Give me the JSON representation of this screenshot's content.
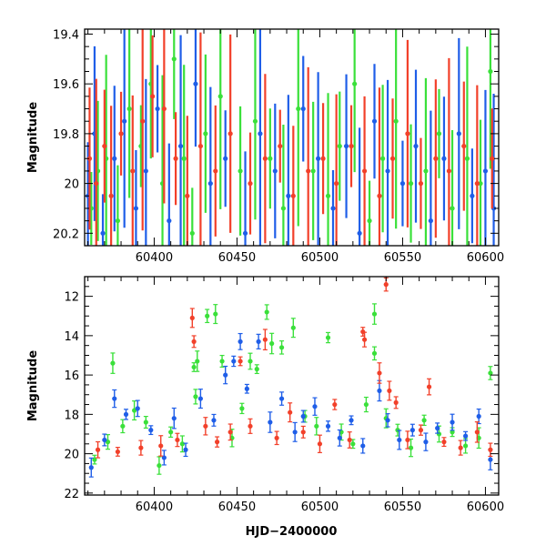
{
  "chart_data": [
    {
      "type": "scatter",
      "panel": "top",
      "xlabel": "",
      "ylabel": "Magnitude",
      "xlim": [
        60358,
        60608
      ],
      "ylim": [
        20.25,
        19.38
      ],
      "y_inverted": true,
      "x_ticks": [
        60400,
        60450,
        60500,
        60550,
        60600
      ],
      "x_tick_labels": [
        "60400",
        "60450",
        "60500",
        "60550",
        "60600"
      ],
      "y_ticks": [
        19.4,
        19.6,
        19.8,
        20,
        20.2
      ],
      "y_tick_labels": [
        "19.4",
        "19.6",
        "19.8",
        "20",
        "20.2"
      ],
      "grid": false,
      "legend": "none",
      "series": [
        {
          "color": "#3ae03a",
          "points": [
            [
              60362,
              20.1
            ],
            [
              60366,
              19.95
            ],
            [
              60371,
              19.9
            ],
            [
              60378,
              20.15
            ],
            [
              60385,
              19.7
            ],
            [
              60392,
              19.85
            ],
            [
              60398,
              19.6
            ],
            [
              60405,
              20.0
            ],
            [
              60412,
              19.5
            ],
            [
              60418,
              19.9
            ],
            [
              60423,
              20.2
            ],
            [
              60431,
              19.8
            ],
            [
              60440,
              19.65
            ],
            [
              60452,
              19.95
            ],
            [
              60461,
              19.75
            ],
            [
              60470,
              19.9
            ],
            [
              60478,
              20.1
            ],
            [
              60487,
              19.7
            ],
            [
              60496,
              19.95
            ],
            [
              60505,
              20.05
            ],
            [
              60512,
              19.85
            ],
            [
              60521,
              19.6
            ],
            [
              60530,
              20.15
            ],
            [
              60538,
              19.9
            ],
            [
              60546,
              19.75
            ],
            [
              60555,
              20.0
            ],
            [
              60564,
              19.95
            ],
            [
              60572,
              19.8
            ],
            [
              60580,
              20.1
            ],
            [
              60589,
              19.9
            ],
            [
              60597,
              20.0
            ],
            [
              60603,
              19.55
            ]
          ]
        },
        {
          "color": "#1f5ee8",
          "points": [
            [
              60360,
              20.05
            ],
            [
              60364,
              19.8
            ],
            [
              60369,
              20.2
            ],
            [
              60376,
              19.9
            ],
            [
              60382,
              19.75
            ],
            [
              60389,
              20.1
            ],
            [
              60395,
              19.95
            ],
            [
              60402,
              19.7
            ],
            [
              60409,
              20.15
            ],
            [
              60416,
              19.85
            ],
            [
              60425,
              19.6
            ],
            [
              60434,
              20.0
            ],
            [
              60443,
              19.9
            ],
            [
              60455,
              20.2
            ],
            [
              60464,
              19.8
            ],
            [
              60473,
              19.95
            ],
            [
              60481,
              20.05
            ],
            [
              60490,
              19.7
            ],
            [
              60499,
              19.9
            ],
            [
              60508,
              20.1
            ],
            [
              60516,
              19.85
            ],
            [
              60524,
              20.2
            ],
            [
              60533,
              19.75
            ],
            [
              60541,
              19.95
            ],
            [
              60550,
              20.0
            ],
            [
              60558,
              19.85
            ],
            [
              60567,
              20.15
            ],
            [
              60575,
              19.9
            ],
            [
              60584,
              19.8
            ],
            [
              60592,
              20.05
            ],
            [
              60600,
              19.95
            ],
            [
              60605,
              20.1
            ]
          ]
        },
        {
          "color": "#f2402a",
          "points": [
            [
              60361,
              19.9
            ],
            [
              60365,
              20.0
            ],
            [
              60370,
              19.85
            ],
            [
              60374,
              20.05
            ],
            [
              60380,
              19.8
            ],
            [
              60387,
              19.95
            ],
            [
              60393,
              19.75
            ],
            [
              60399,
              19.65
            ],
            [
              60406,
              19.7
            ],
            [
              60413,
              19.9
            ],
            [
              60420,
              20.05
            ],
            [
              60428,
              19.85
            ],
            [
              60437,
              19.95
            ],
            [
              60446,
              19.8
            ],
            [
              60458,
              20.0
            ],
            [
              60467,
              19.9
            ],
            [
              60476,
              19.85
            ],
            [
              60484,
              20.05
            ],
            [
              60493,
              19.95
            ],
            [
              60502,
              19.9
            ],
            [
              60510,
              20.0
            ],
            [
              60519,
              19.85
            ],
            [
              60527,
              19.95
            ],
            [
              60536,
              20.05
            ],
            [
              60544,
              19.9
            ],
            [
              60553,
              19.8
            ],
            [
              60561,
              20.0
            ],
            [
              60570,
              19.9
            ],
            [
              60578,
              19.95
            ],
            [
              60587,
              19.85
            ],
            [
              60595,
              20.0
            ],
            [
              60604,
              19.9
            ]
          ]
        }
      ]
    },
    {
      "type": "scatter",
      "panel": "bottom",
      "xlabel": "HJD−2400000",
      "ylabel": "Magnitude",
      "xlim": [
        60358,
        60608
      ],
      "ylim": [
        22.1,
        11.0
      ],
      "y_inverted": true,
      "x_ticks": [
        60400,
        60450,
        60500,
        60550,
        60600
      ],
      "x_tick_labels": [
        "60400",
        "60450",
        "60500",
        "60550",
        "60600"
      ],
      "y_ticks": [
        12,
        14,
        16,
        18,
        20,
        22
      ],
      "y_tick_labels": [
        "12",
        "14",
        "16",
        "18",
        "20",
        "22"
      ],
      "grid": false,
      "legend": "none",
      "series": [
        {
          "color": "#3ae03a",
          "points": [
            [
              60364,
              20.3
            ],
            [
              60372,
              19.4
            ],
            [
              60375,
              15.4
            ],
            [
              60381,
              18.6
            ],
            [
              60388,
              17.8
            ],
            [
              60395,
              18.4
            ],
            [
              60403,
              20.6
            ],
            [
              60410,
              18.9
            ],
            [
              60417,
              19.5
            ],
            [
              60424,
              15.6
            ],
            [
              60425,
              17.1
            ],
            [
              60426,
              15.3
            ],
            [
              60432,
              13.0
            ],
            [
              60437,
              12.9
            ],
            [
              60441,
              15.3
            ],
            [
              60447,
              19.2
            ],
            [
              60453,
              17.7
            ],
            [
              60458,
              15.3
            ],
            [
              60462,
              15.7
            ],
            [
              60468,
              12.8
            ],
            [
              60471,
              14.4
            ],
            [
              60477,
              14.6
            ],
            [
              60484,
              13.6
            ],
            [
              60491,
              18.1
            ],
            [
              60498,
              18.6
            ],
            [
              60505,
              14.1
            ],
            [
              60513,
              18.9
            ],
            [
              60520,
              19.5
            ],
            [
              60528,
              17.5
            ],
            [
              60533,
              12.9
            ],
            [
              60533,
              14.9
            ],
            [
              60540,
              18.2
            ],
            [
              60547,
              18.8
            ],
            [
              60555,
              19.7
            ],
            [
              60563,
              18.3
            ],
            [
              60572,
              19.0
            ],
            [
              60580,
              18.9
            ],
            [
              60588,
              19.6
            ],
            [
              60596,
              19.2
            ],
            [
              60603,
              15.9
            ]
          ]
        },
        {
          "color": "#1f5ee8",
          "points": [
            [
              60362,
              20.7
            ],
            [
              60370,
              19.3
            ],
            [
              60376,
              17.2
            ],
            [
              60383,
              18.0
            ],
            [
              60390,
              17.7
            ],
            [
              60398,
              18.8
            ],
            [
              60406,
              20.2
            ],
            [
              60412,
              18.2
            ],
            [
              60419,
              19.8
            ],
            [
              60428,
              17.2
            ],
            [
              60436,
              18.3
            ],
            [
              60443,
              16.0
            ],
            [
              60448,
              15.3
            ],
            [
              60452,
              14.3
            ],
            [
              60456,
              16.7
            ],
            [
              60463,
              14.3
            ],
            [
              60470,
              18.4
            ],
            [
              60477,
              17.2
            ],
            [
              60485,
              18.9
            ],
            [
              60490,
              18.1
            ],
            [
              60497,
              17.6
            ],
            [
              60505,
              18.6
            ],
            [
              60512,
              19.2
            ],
            [
              60519,
              18.3
            ],
            [
              60526,
              19.6
            ],
            [
              60536,
              16.8
            ],
            [
              60541,
              18.3
            ],
            [
              60548,
              19.3
            ],
            [
              60556,
              18.8
            ],
            [
              60564,
              19.4
            ],
            [
              60571,
              18.7
            ],
            [
              60580,
              18.4
            ],
            [
              60588,
              19.1
            ],
            [
              60596,
              18.1
            ],
            [
              60603,
              20.3
            ]
          ]
        },
        {
          "color": "#f2402a",
          "points": [
            [
              60366,
              19.8
            ],
            [
              60378,
              19.9
            ],
            [
              60392,
              19.7
            ],
            [
              60404,
              19.6
            ],
            [
              60414,
              19.3
            ],
            [
              60423,
              13.1
            ],
            [
              60424,
              14.3
            ],
            [
              60431,
              18.6
            ],
            [
              60438,
              19.4
            ],
            [
              60446,
              18.9
            ],
            [
              60452,
              15.3
            ],
            [
              60458,
              18.6
            ],
            [
              60467,
              14.2
            ],
            [
              60474,
              19.2
            ],
            [
              60482,
              17.9
            ],
            [
              60490,
              18.9
            ],
            [
              60500,
              19.5
            ],
            [
              60509,
              17.5
            ],
            [
              60518,
              19.3
            ],
            [
              60526,
              13.8
            ],
            [
              60527,
              14.2
            ],
            [
              60536,
              15.9
            ],
            [
              60540,
              11.4
            ],
            [
              60542,
              16.8
            ],
            [
              60546,
              17.4
            ],
            [
              60553,
              19.3
            ],
            [
              60561,
              18.8
            ],
            [
              60566,
              16.6
            ],
            [
              60575,
              19.4
            ],
            [
              60585,
              19.7
            ],
            [
              60595,
              18.9
            ],
            [
              60603,
              19.8
            ]
          ]
        }
      ]
    }
  ]
}
